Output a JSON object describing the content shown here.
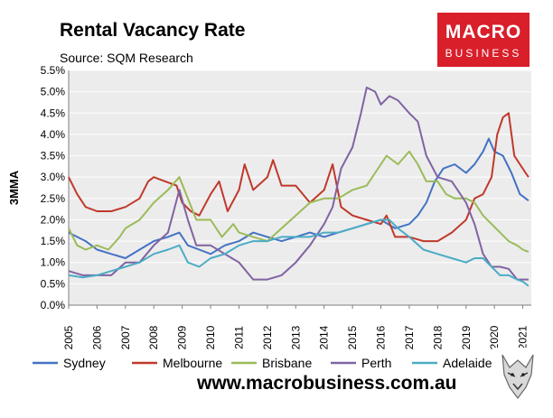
{
  "header": {
    "title": "Rental Vacancy Rate",
    "subtitle": "Source: SQM Research"
  },
  "logo": {
    "line1": "MACRO",
    "line2": "BUSINESS"
  },
  "footer": {
    "website": "www.macrobusiness.com.au"
  },
  "chart_data": {
    "type": "line",
    "title": "Rental Vacancy Rate",
    "subtitle": "Source: SQM Research",
    "xlabel": "",
    "ylabel": "3MMA",
    "xlim": [
      2005,
      2021.3
    ],
    "ylim": [
      0,
      5.5
    ],
    "x_ticks": [
      "2005",
      "2006",
      "2007",
      "2008",
      "2009",
      "2010",
      "2011",
      "2012",
      "2013",
      "2014",
      "2015",
      "2016",
      "2017",
      "2018",
      "2019",
      "2020",
      "2021"
    ],
    "y_ticks": [
      "0.0%",
      "0.5%",
      "1.0%",
      "1.5%",
      "2.0%",
      "2.5%",
      "3.0%",
      "3.5%",
      "4.0%",
      "4.5%",
      "5.0%",
      "5.5%"
    ],
    "legend_position": "bottom",
    "series": [
      {
        "name": "Sydney",
        "color": "#4472c4",
        "points": [
          [
            2005,
            1.7
          ],
          [
            2005.3,
            1.6
          ],
          [
            2005.6,
            1.5
          ],
          [
            2006,
            1.3
          ],
          [
            2006.5,
            1.2
          ],
          [
            2007,
            1.1
          ],
          [
            2007.5,
            1.3
          ],
          [
            2008,
            1.5
          ],
          [
            2008.5,
            1.6
          ],
          [
            2008.9,
            1.7
          ],
          [
            2009.2,
            1.4
          ],
          [
            2009.6,
            1.3
          ],
          [
            2010,
            1.2
          ],
          [
            2010.5,
            1.4
          ],
          [
            2011,
            1.5
          ],
          [
            2011.5,
            1.7
          ],
          [
            2012,
            1.6
          ],
          [
            2012.5,
            1.5
          ],
          [
            2013,
            1.6
          ],
          [
            2013.5,
            1.7
          ],
          [
            2014,
            1.6
          ],
          [
            2014.5,
            1.7
          ],
          [
            2015,
            1.8
          ],
          [
            2015.5,
            1.9
          ],
          [
            2016,
            2.0
          ],
          [
            2016.5,
            1.8
          ],
          [
            2017,
            1.9
          ],
          [
            2017.3,
            2.1
          ],
          [
            2017.6,
            2.4
          ],
          [
            2017.9,
            2.9
          ],
          [
            2018.2,
            3.2
          ],
          [
            2018.6,
            3.3
          ],
          [
            2019,
            3.1
          ],
          [
            2019.3,
            3.3
          ],
          [
            2019.6,
            3.6
          ],
          [
            2019.8,
            3.9
          ],
          [
            2020,
            3.6
          ],
          [
            2020.3,
            3.5
          ],
          [
            2020.6,
            3.1
          ],
          [
            2020.9,
            2.6
          ],
          [
            2021.1,
            2.5
          ],
          [
            2021.2,
            2.45
          ]
        ]
      },
      {
        "name": "Melbourne",
        "color": "#c0392b",
        "points": [
          [
            2005,
            3.0
          ],
          [
            2005.3,
            2.6
          ],
          [
            2005.6,
            2.3
          ],
          [
            2006,
            2.2
          ],
          [
            2006.5,
            2.2
          ],
          [
            2007,
            2.3
          ],
          [
            2007.5,
            2.5
          ],
          [
            2007.8,
            2.9
          ],
          [
            2008,
            3.0
          ],
          [
            2008.4,
            2.9
          ],
          [
            2008.8,
            2.8
          ],
          [
            2009,
            2.4
          ],
          [
            2009.3,
            2.2
          ],
          [
            2009.6,
            2.1
          ],
          [
            2010,
            2.6
          ],
          [
            2010.3,
            2.9
          ],
          [
            2010.6,
            2.2
          ],
          [
            2011,
            2.7
          ],
          [
            2011.2,
            3.3
          ],
          [
            2011.5,
            2.7
          ],
          [
            2012,
            3.0
          ],
          [
            2012.2,
            3.4
          ],
          [
            2012.5,
            2.8
          ],
          [
            2013,
            2.8
          ],
          [
            2013.5,
            2.4
          ],
          [
            2014,
            2.7
          ],
          [
            2014.3,
            3.3
          ],
          [
            2014.6,
            2.3
          ],
          [
            2015,
            2.1
          ],
          [
            2015.5,
            2.0
          ],
          [
            2016,
            1.9
          ],
          [
            2016.2,
            2.1
          ],
          [
            2016.5,
            1.6
          ],
          [
            2017,
            1.6
          ],
          [
            2017.5,
            1.5
          ],
          [
            2018,
            1.5
          ],
          [
            2018.5,
            1.7
          ],
          [
            2019,
            2.0
          ],
          [
            2019.3,
            2.5
          ],
          [
            2019.6,
            2.6
          ],
          [
            2019.9,
            3.0
          ],
          [
            2020.1,
            4.0
          ],
          [
            2020.3,
            4.4
          ],
          [
            2020.5,
            4.5
          ],
          [
            2020.7,
            3.5
          ],
          [
            2020.9,
            3.3
          ],
          [
            2021.1,
            3.1
          ],
          [
            2021.2,
            3.0
          ]
        ]
      },
      {
        "name": "Brisbane",
        "color": "#9bbb59",
        "points": [
          [
            2005,
            1.8
          ],
          [
            2005.3,
            1.4
          ],
          [
            2005.6,
            1.3
          ],
          [
            2006,
            1.4
          ],
          [
            2006.4,
            1.3
          ],
          [
            2006.8,
            1.6
          ],
          [
            2007,
            1.8
          ],
          [
            2007.5,
            2.0
          ],
          [
            2008,
            2.4
          ],
          [
            2008.5,
            2.7
          ],
          [
            2008.9,
            3.0
          ],
          [
            2009.2,
            2.5
          ],
          [
            2009.5,
            2.0
          ],
          [
            2010,
            2.0
          ],
          [
            2010.4,
            1.6
          ],
          [
            2010.8,
            1.9
          ],
          [
            2011,
            1.7
          ],
          [
            2011.5,
            1.6
          ],
          [
            2012,
            1.5
          ],
          [
            2012.5,
            1.8
          ],
          [
            2013,
            2.1
          ],
          [
            2013.5,
            2.4
          ],
          [
            2014,
            2.5
          ],
          [
            2014.5,
            2.5
          ],
          [
            2015,
            2.7
          ],
          [
            2015.5,
            2.8
          ],
          [
            2016,
            3.3
          ],
          [
            2016.2,
            3.5
          ],
          [
            2016.6,
            3.3
          ],
          [
            2017,
            3.6
          ],
          [
            2017.3,
            3.3
          ],
          [
            2017.6,
            2.9
          ],
          [
            2018,
            2.9
          ],
          [
            2018.3,
            2.6
          ],
          [
            2018.6,
            2.5
          ],
          [
            2019,
            2.5
          ],
          [
            2019.3,
            2.4
          ],
          [
            2019.6,
            2.1
          ],
          [
            2019.9,
            1.9
          ],
          [
            2020.2,
            1.7
          ],
          [
            2020.5,
            1.5
          ],
          [
            2020.8,
            1.4
          ],
          [
            2021,
            1.3
          ],
          [
            2021.2,
            1.25
          ]
        ]
      },
      {
        "name": "Perth",
        "color": "#8064a2",
        "points": [
          [
            2005,
            0.8
          ],
          [
            2005.5,
            0.7
          ],
          [
            2006,
            0.7
          ],
          [
            2006.5,
            0.7
          ],
          [
            2007,
            1.0
          ],
          [
            2007.5,
            1.0
          ],
          [
            2008,
            1.4
          ],
          [
            2008.5,
            1.7
          ],
          [
            2008.9,
            2.7
          ],
          [
            2009.2,
            2.0
          ],
          [
            2009.5,
            1.4
          ],
          [
            2010,
            1.4
          ],
          [
            2010.5,
            1.2
          ],
          [
            2011,
            1.0
          ],
          [
            2011.5,
            0.6
          ],
          [
            2012,
            0.6
          ],
          [
            2012.5,
            0.7
          ],
          [
            2013,
            1.0
          ],
          [
            2013.5,
            1.4
          ],
          [
            2014,
            1.9
          ],
          [
            2014.3,
            2.3
          ],
          [
            2014.6,
            3.2
          ],
          [
            2015,
            3.7
          ],
          [
            2015.3,
            4.5
          ],
          [
            2015.5,
            5.1
          ],
          [
            2015.8,
            5.0
          ],
          [
            2016,
            4.7
          ],
          [
            2016.3,
            4.9
          ],
          [
            2016.6,
            4.8
          ],
          [
            2017,
            4.5
          ],
          [
            2017.3,
            4.3
          ],
          [
            2017.6,
            3.5
          ],
          [
            2018,
            3.0
          ],
          [
            2018.5,
            2.9
          ],
          [
            2019,
            2.4
          ],
          [
            2019.3,
            1.9
          ],
          [
            2019.6,
            1.2
          ],
          [
            2019.9,
            0.9
          ],
          [
            2020.2,
            0.9
          ],
          [
            2020.5,
            0.85
          ],
          [
            2020.8,
            0.6
          ],
          [
            2021,
            0.6
          ],
          [
            2021.2,
            0.6
          ]
        ]
      },
      {
        "name": "Adelaide",
        "color": "#4bacc6",
        "points": [
          [
            2005,
            0.7
          ],
          [
            2005.5,
            0.65
          ],
          [
            2006,
            0.7
          ],
          [
            2006.5,
            0.8
          ],
          [
            2007,
            0.9
          ],
          [
            2007.5,
            1.0
          ],
          [
            2008,
            1.2
          ],
          [
            2008.5,
            1.3
          ],
          [
            2008.9,
            1.4
          ],
          [
            2009.2,
            1.0
          ],
          [
            2009.6,
            0.9
          ],
          [
            2010,
            1.1
          ],
          [
            2010.5,
            1.2
          ],
          [
            2011,
            1.4
          ],
          [
            2011.5,
            1.5
          ],
          [
            2012,
            1.5
          ],
          [
            2012.5,
            1.6
          ],
          [
            2013,
            1.6
          ],
          [
            2013.5,
            1.6
          ],
          [
            2014,
            1.7
          ],
          [
            2014.5,
            1.7
          ],
          [
            2015,
            1.8
          ],
          [
            2015.5,
            1.9
          ],
          [
            2016,
            2.0
          ],
          [
            2016.3,
            2.0
          ],
          [
            2016.6,
            1.8
          ],
          [
            2017,
            1.6
          ],
          [
            2017.5,
            1.3
          ],
          [
            2018,
            1.2
          ],
          [
            2018.5,
            1.1
          ],
          [
            2019,
            1.0
          ],
          [
            2019.3,
            1.1
          ],
          [
            2019.6,
            1.1
          ],
          [
            2019.9,
            0.9
          ],
          [
            2020.2,
            0.7
          ],
          [
            2020.5,
            0.7
          ],
          [
            2020.8,
            0.6
          ],
          [
            2021,
            0.55
          ],
          [
            2021.2,
            0.45
          ]
        ]
      }
    ]
  }
}
